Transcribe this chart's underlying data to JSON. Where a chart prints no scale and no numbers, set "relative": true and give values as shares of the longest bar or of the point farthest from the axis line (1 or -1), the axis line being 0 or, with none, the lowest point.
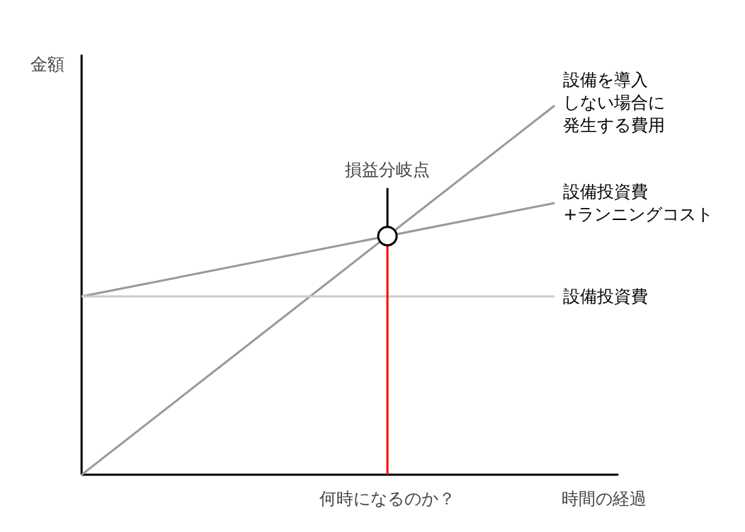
{
  "chart_data": {
    "type": "line",
    "relative": true,
    "xlabel": "時間の経過",
    "ylabel": "金額",
    "categories": [
      null,
      null
    ],
    "line_style": "solid",
    "series": [
      {
        "name": "設備を導入しない場合に発生する費用",
        "color": "#999999",
        "values": [
          0,
          1
        ]
      },
      {
        "name": "設備投資費+ランニングコスト",
        "color": "#999999",
        "values": [
          0.483,
          0.736
        ]
      },
      {
        "name": "設備投資費",
        "color": "#cccccc",
        "values": [
          0.483,
          0.483
        ]
      }
    ],
    "annotations": [
      "損益分岐点",
      "何時になるのか？"
    ]
  }
}
